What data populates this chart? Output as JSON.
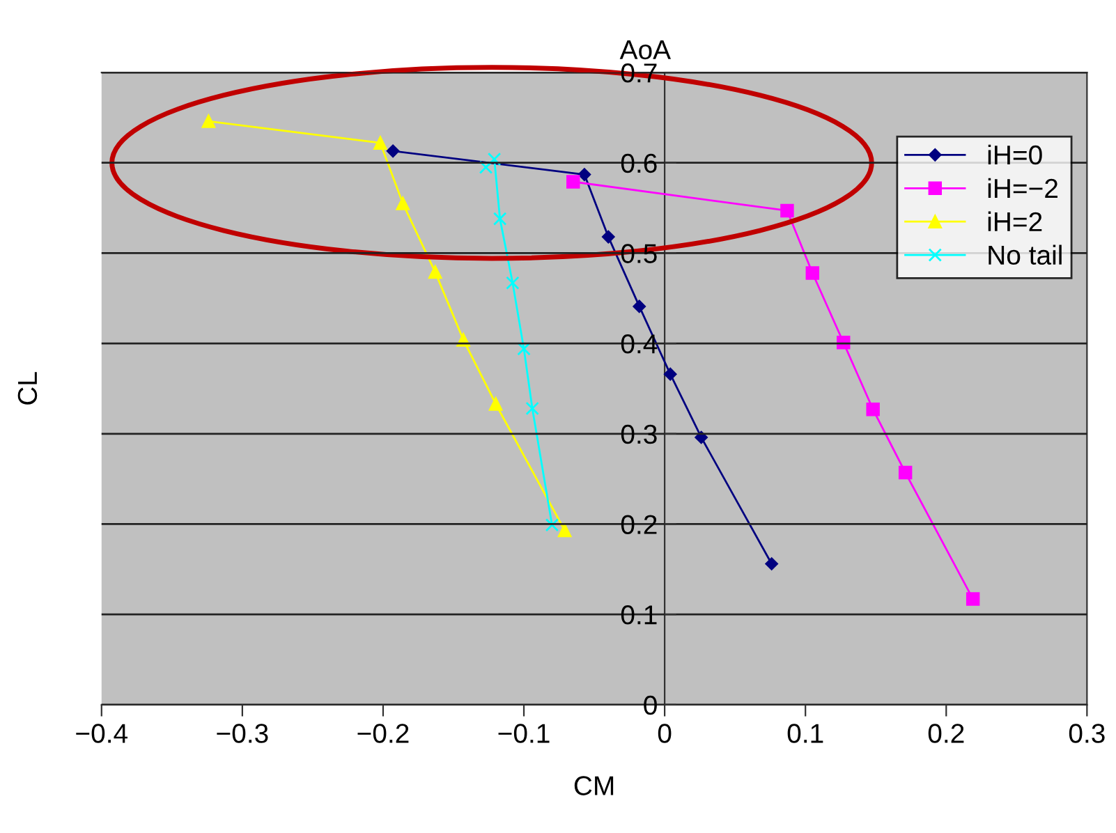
{
  "chart_data": {
    "type": "line",
    "xlabel": "CM",
    "ylabel": "CL",
    "annotations": [
      "AoA"
    ],
    "xlim": [
      -0.4,
      0.3
    ],
    "xticks": [
      {
        "value": -0.4,
        "label": "−0.4"
      },
      {
        "value": -0.3,
        "label": "−0.3"
      },
      {
        "value": -0.2,
        "label": "−0.2"
      },
      {
        "value": -0.1,
        "label": "−0.1"
      },
      0,
      0.1,
      0.2,
      0.3
    ],
    "ylim": [
      0,
      0.7
    ],
    "yticks": [
      0,
      0.1,
      0.2,
      0.3,
      0.4,
      0.5,
      0.6,
      0.7
    ],
    "grid": "y",
    "legend": "top right",
    "series": [
      {
        "name": "iH=0",
        "color": "#000080",
        "marker": "diamond",
        "x": [
          -0.193,
          -0.057,
          -0.04,
          -0.018,
          0.004,
          0.026,
          0.076
        ],
        "values": [
          0.613,
          0.587,
          0.518,
          0.441,
          0.366,
          0.296,
          0.156
        ]
      },
      {
        "name": "iH=−2",
        "color": "#ff00ff",
        "marker": "square",
        "x": [
          -0.065,
          0.087,
          0.105,
          0.127,
          0.148,
          0.171,
          0.219
        ],
        "values": [
          0.579,
          0.547,
          0.478,
          0.401,
          0.327,
          0.257,
          0.117
        ]
      },
      {
        "name": "iH=2",
        "color": "#ffff00",
        "marker": "triangle",
        "x": [
          -0.324,
          -0.202,
          -0.186,
          -0.163,
          -0.143,
          -0.12,
          -0.071
        ],
        "values": [
          0.646,
          0.622,
          0.555,
          0.479,
          0.404,
          0.333,
          0.193
        ]
      },
      {
        "name": "No tail",
        "color": "#00ffff",
        "marker": "cross",
        "x": [
          -0.127,
          -0.121,
          -0.117,
          -0.108,
          -0.1,
          -0.094,
          -0.08
        ],
        "values": [
          0.595,
          0.604,
          0.538,
          0.467,
          0.394,
          0.328,
          0.199
        ]
      }
    ]
  }
}
